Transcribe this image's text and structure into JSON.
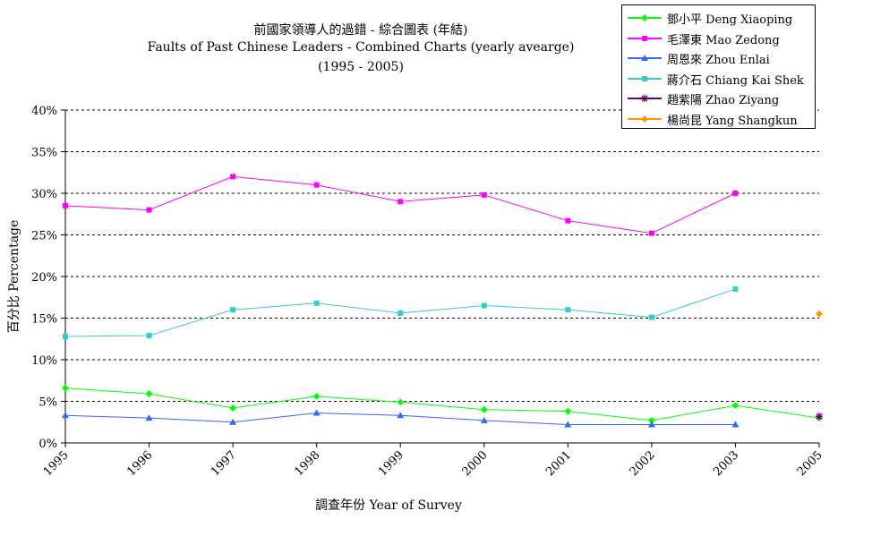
{
  "chart_data": {
    "type": "line",
    "title": "前國家領導人的過錯 - 綜合圖表 (年結)",
    "subtitle": "Faults of Past Chinese Leaders - Combined Charts (yearly avearge)",
    "subtitle2": "(1995 - 2005)",
    "xlabel": "調查年份 Year of Survey",
    "ylabel": "百分比 Percentage",
    "categories": [
      "1995",
      "1996",
      "1997",
      "1998",
      "1999",
      "2000",
      "2001",
      "2002",
      "2003",
      "2005"
    ],
    "ylim": [
      0,
      40
    ],
    "yticks": [
      "0%",
      "5%",
      "10%",
      "15%",
      "20%",
      "25%",
      "30%",
      "35%",
      "40%"
    ],
    "grid": "horizontal dashed",
    "legend_position": "top-right",
    "series": [
      {
        "name": "鄧小平 Deng Xiaoping",
        "color": "#00ff00",
        "marker": "diamond",
        "values": [
          6.6,
          5.9,
          4.2,
          5.6,
          4.9,
          4.0,
          3.8,
          2.7,
          4.5,
          3.0
        ]
      },
      {
        "name": "毛澤東 Mao Zedong",
        "color": "#ff00ff",
        "marker": "square",
        "values": [
          28.5,
          28.0,
          32.0,
          31.0,
          29.0,
          29.8,
          26.7,
          25.2,
          30.0,
          null
        ]
      },
      {
        "name": "周恩來 Zhou Enlai",
        "color": "#3366ff",
        "marker": "triangle",
        "values": [
          3.3,
          3.0,
          2.5,
          3.6,
          3.3,
          2.7,
          2.2,
          2.2,
          2.2,
          null
        ]
      },
      {
        "name": "蔣介石 Chiang Kai Shek",
        "color": "#33cccc",
        "marker": "square",
        "values": [
          12.8,
          12.9,
          16.0,
          16.8,
          15.6,
          16.5,
          16.0,
          15.1,
          18.5,
          null
        ]
      },
      {
        "name": "趙紫陽 Zhao Ziyang",
        "color": "#660066",
        "marker": "star",
        "values": [
          null,
          null,
          null,
          null,
          null,
          null,
          null,
          null,
          null,
          3.2
        ]
      },
      {
        "name": "楊尚昆 Yang Shangkun",
        "color": "#ff9900",
        "marker": "diamond",
        "values": [
          null,
          null,
          null,
          null,
          null,
          null,
          null,
          null,
          null,
          15.5
        ]
      }
    ]
  }
}
